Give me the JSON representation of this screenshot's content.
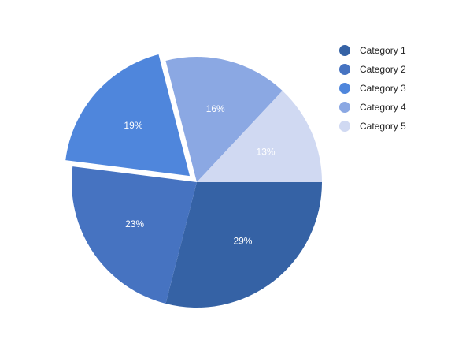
{
  "chart_data": {
    "type": "pie",
    "title": "",
    "slices": [
      {
        "name": "Category 1",
        "value": 29,
        "label": "29%",
        "color": "#3562a5",
        "exploded": false
      },
      {
        "name": "Category 2",
        "value": 23,
        "label": "23%",
        "color": "#4673c1",
        "exploded": false
      },
      {
        "name": "Category 3",
        "value": 19,
        "label": "19%",
        "color": "#4f86dc",
        "exploded": true
      },
      {
        "name": "Category 4",
        "value": 16,
        "label": "16%",
        "color": "#8ba8e3",
        "exploded": false
      },
      {
        "name": "Category 5",
        "value": 13,
        "label": "13%",
        "color": "#d0d9f2",
        "exploded": false
      }
    ],
    "legend": {
      "placement": "right",
      "entries": [
        "Category 1",
        "Category 2",
        "Category 3",
        "Category 4",
        "Category 5"
      ]
    }
  }
}
